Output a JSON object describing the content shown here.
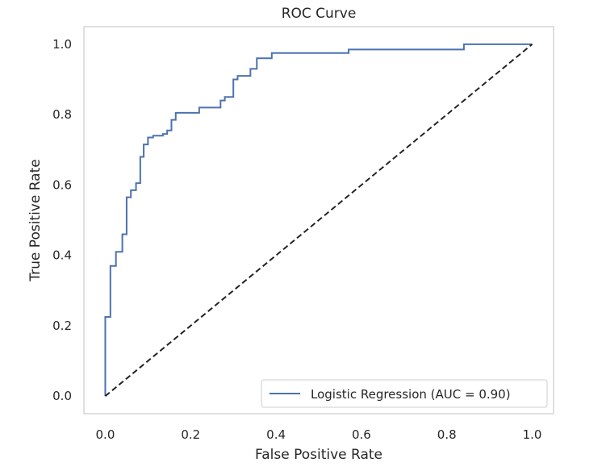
{
  "chart_data": {
    "type": "line",
    "title": "ROC Curve",
    "xlabel": "False Positive Rate",
    "ylabel": "True Positive Rate",
    "xlim": [
      -0.05,
      1.05
    ],
    "ylim": [
      -0.05,
      1.05
    ],
    "xticks": [
      "0.0",
      "0.2",
      "0.4",
      "0.6",
      "0.8",
      "1.0"
    ],
    "yticks": [
      "0.0",
      "0.2",
      "0.4",
      "0.6",
      "0.8",
      "1.0"
    ],
    "grid": false,
    "legend_position": "lower-right",
    "series": [
      {
        "name": "Logistic Regression (AUC = 0.90)",
        "color": "#4c72b0",
        "style": "solid",
        "x": [
          0.0,
          0.0,
          0.012,
          0.012,
          0.025,
          0.025,
          0.04,
          0.04,
          0.05,
          0.05,
          0.06,
          0.06,
          0.072,
          0.072,
          0.082,
          0.082,
          0.09,
          0.09,
          0.1,
          0.1,
          0.112,
          0.112,
          0.135,
          0.135,
          0.145,
          0.145,
          0.155,
          0.155,
          0.165,
          0.165,
          0.175,
          0.175,
          0.22,
          0.22,
          0.27,
          0.27,
          0.28,
          0.28,
          0.3,
          0.3,
          0.31,
          0.31,
          0.34,
          0.34,
          0.355,
          0.355,
          0.39,
          0.39,
          0.57,
          0.57,
          0.84,
          0.84,
          1.0
        ],
        "y": [
          0.0,
          0.225,
          0.225,
          0.37,
          0.37,
          0.41,
          0.41,
          0.46,
          0.46,
          0.565,
          0.565,
          0.585,
          0.585,
          0.605,
          0.605,
          0.68,
          0.68,
          0.715,
          0.715,
          0.735,
          0.735,
          0.74,
          0.74,
          0.745,
          0.745,
          0.755,
          0.755,
          0.785,
          0.785,
          0.805,
          0.805,
          0.805,
          0.805,
          0.82,
          0.82,
          0.84,
          0.84,
          0.85,
          0.85,
          0.9,
          0.9,
          0.91,
          0.91,
          0.93,
          0.93,
          0.96,
          0.96,
          0.975,
          0.975,
          0.985,
          0.985,
          1.0,
          1.0
        ]
      },
      {
        "name": "",
        "color": "#222222",
        "style": "dashed",
        "x": [
          0.0,
          1.0
        ],
        "y": [
          0.0,
          1.0
        ]
      }
    ]
  }
}
